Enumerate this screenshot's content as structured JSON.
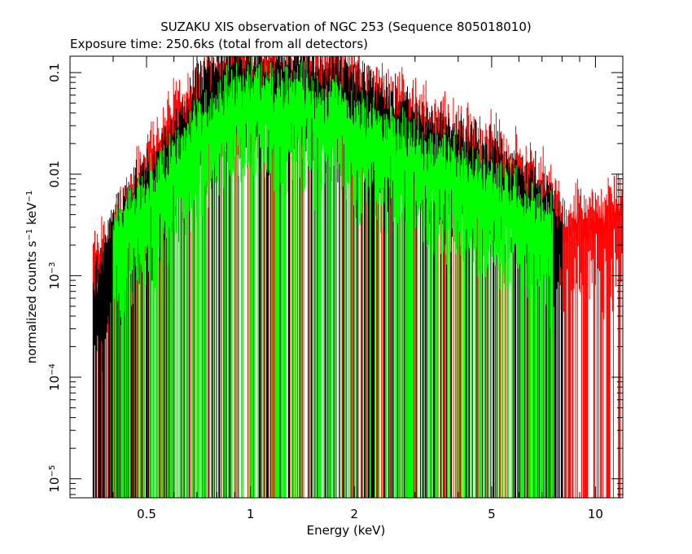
{
  "chart_data": {
    "type": "line",
    "title": "SUZAKU XIS observation of NGC 253 (Sequence 805018010)",
    "subtitle": "Exposure time: 250.6ks (total from all detectors)",
    "xlabel": "Energy (keV)",
    "ylabel": "normalized counts s^-1 keV^-1",
    "x_scale": "log",
    "y_scale": "log",
    "xlim": [
      0.3,
      12
    ],
    "ylim": [
      6.5e-06,
      0.145
    ],
    "x_ticks": [
      {
        "value": 0.5,
        "label": "0.5"
      },
      {
        "value": 1,
        "label": "1"
      },
      {
        "value": 2,
        "label": "2"
      },
      {
        "value": 5,
        "label": "5"
      },
      {
        "value": 10,
        "label": "10"
      }
    ],
    "y_ticks": [
      {
        "value": 0.1,
        "base": "0.1",
        "exp": ""
      },
      {
        "value": 0.01,
        "base": "0.01",
        "exp": ""
      },
      {
        "value": 0.001,
        "base": "10",
        "exp": "−3"
      },
      {
        "value": 0.0001,
        "base": "10",
        "exp": "−4"
      },
      {
        "value": 1e-05,
        "base": "10",
        "exp": "−5"
      }
    ],
    "grid": false,
    "series": [
      {
        "color": "#ff0000",
        "x": [
          0.35,
          0.4,
          0.5,
          0.6,
          0.7,
          0.8,
          0.9,
          1.0,
          1.2,
          1.4,
          1.6,
          1.8,
          2.0,
          2.5,
          3.0,
          4.0,
          5.0,
          6.0,
          7.0,
          8.0,
          9.0,
          10.0,
          12.0
        ],
        "y": [
          0.001,
          0.002,
          0.01,
          0.03,
          0.06,
          0.09,
          0.1,
          0.09,
          0.09,
          0.1,
          0.08,
          0.1,
          0.07,
          0.04,
          0.03,
          0.02,
          0.014,
          0.009,
          0.006,
          0.003,
          0.003,
          0.003,
          0.004
        ]
      },
      {
        "color": "#000000",
        "x": [
          0.35,
          0.4,
          0.5,
          0.6,
          0.7,
          0.8,
          0.9,
          1.0,
          1.2,
          1.4,
          1.6,
          1.8,
          2.0,
          2.5,
          3.0,
          4.0,
          5.0,
          6.0,
          7.0,
          8.0
        ],
        "y": [
          0.0005,
          0.002,
          0.006,
          0.015,
          0.04,
          0.07,
          0.08,
          0.08,
          0.08,
          0.09,
          0.06,
          0.07,
          0.05,
          0.035,
          0.025,
          0.015,
          0.01,
          0.007,
          0.005,
          0.002
        ]
      },
      {
        "color": "#00ff00",
        "x": [
          0.4,
          0.5,
          0.6,
          0.7,
          0.8,
          0.9,
          1.0,
          1.2,
          1.4,
          1.6,
          1.8,
          2.0,
          2.5,
          3.0,
          4.0,
          5.0,
          6.0,
          7.0,
          7.5
        ],
        "y": [
          0.002,
          0.005,
          0.01,
          0.02,
          0.035,
          0.045,
          0.05,
          0.045,
          0.05,
          0.035,
          0.04,
          0.025,
          0.018,
          0.013,
          0.009,
          0.006,
          0.0045,
          0.003,
          0.0025
        ]
      }
    ]
  }
}
